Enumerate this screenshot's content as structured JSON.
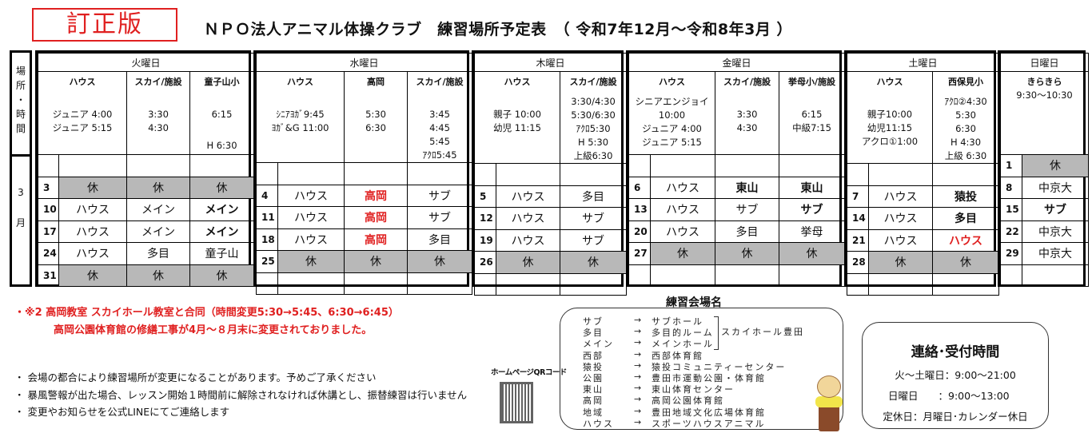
{
  "badge": "訂正版",
  "title": "ＮＰＯ法人アニマル体操クラブ　練習場所予定表　（ 令和7年12月～令和8年3月 ）",
  "side": {
    "top": "場\n所\n・\n時\n間",
    "month": "3\n月"
  },
  "days": [
    {
      "name": "火曜日",
      "cols": [
        {
          "label": "ハウス",
          "times": "ジュニア 4:00\nジュニア 5:15",
          "top": 28
        },
        {
          "label": "スカイ/施設",
          "times": "3:30\n4:30",
          "top": 28
        },
        {
          "label": "童子山小",
          "times": "6:15",
          "note": "H 6:30",
          "top": 28
        }
      ],
      "rows": [
        {
          "d": "",
          "c": [
            {
              "t": ""
            },
            {
              "t": ""
            },
            {
              "t": ""
            }
          ]
        },
        {
          "d": "3",
          "c": [
            {
              "t": "休",
              "s": "gray"
            },
            {
              "t": "休",
              "s": "gray"
            },
            {
              "t": "休",
              "s": "gray"
            }
          ]
        },
        {
          "d": "10",
          "c": [
            {
              "t": "ハウス"
            },
            {
              "t": "メイン"
            },
            {
              "t": "メイン",
              "s": "b"
            }
          ]
        },
        {
          "d": "17",
          "c": [
            {
              "t": "ハウス"
            },
            {
              "t": "メイン"
            },
            {
              "t": "メイン",
              "s": "b"
            }
          ]
        },
        {
          "d": "24",
          "c": [
            {
              "t": "ハウス"
            },
            {
              "t": "多目"
            },
            {
              "t": "童子山"
            }
          ]
        },
        {
          "d": "31",
          "c": [
            {
              "t": "休",
              "s": "gray"
            },
            {
              "t": "休",
              "s": "gray"
            },
            {
              "t": "休",
              "s": "gray"
            }
          ]
        }
      ]
    },
    {
      "name": "水曜日",
      "cols": [
        {
          "label": "ハウス",
          "times": "ｼﾆｱﾖｶﾞ9:45\nﾖｶﾞ&G 11:00",
          "top": 28
        },
        {
          "label": "高岡",
          "times": "5:30\n6:30",
          "top": 28
        },
        {
          "label": "スカイ/施設",
          "times": "3:45\n4:45\n5:45\nｱｸﾛ5:45",
          "top": 28
        }
      ],
      "rows": [
        {
          "d": "",
          "c": [
            {
              "t": ""
            },
            {
              "t": ""
            },
            {
              "t": ""
            }
          ]
        },
        {
          "d": "4",
          "c": [
            {
              "t": "ハウス"
            },
            {
              "t": "高岡",
              "s": "r"
            },
            {
              "t": "サブ"
            }
          ]
        },
        {
          "d": "11",
          "c": [
            {
              "t": "ハウス"
            },
            {
              "t": "高岡",
              "s": "r"
            },
            {
              "t": "サブ"
            }
          ]
        },
        {
          "d": "18",
          "c": [
            {
              "t": "ハウス"
            },
            {
              "t": "高岡",
              "s": "r"
            },
            {
              "t": "多目"
            }
          ]
        },
        {
          "d": "25",
          "c": [
            {
              "t": "休",
              "s": "gray"
            },
            {
              "t": "休",
              "s": "gray"
            },
            {
              "t": "休",
              "s": "gray"
            }
          ]
        },
        {
          "d": "",
          "c": [
            {
              "t": ""
            },
            {
              "t": ""
            },
            {
              "t": ""
            }
          ]
        }
      ]
    },
    {
      "name": "木曜日",
      "cols": [
        {
          "label": "ハウス",
          "times": "親子  10:00\n幼児 11:15",
          "top": 28
        },
        {
          "label": "スカイ/施設",
          "times": "3:30/4:30\n5:30/6:30\nｱｸﾛ5:30\nH  5:30\n上級6:30",
          "top": 12
        }
      ],
      "rows": [
        {
          "d": "",
          "c": [
            {
              "t": ""
            },
            {
              "t": ""
            }
          ]
        },
        {
          "d": "5",
          "c": [
            {
              "t": "ハウス"
            },
            {
              "t": "多目"
            }
          ]
        },
        {
          "d": "12",
          "c": [
            {
              "t": "ハウス"
            },
            {
              "t": "サブ"
            }
          ]
        },
        {
          "d": "19",
          "c": [
            {
              "t": "ハウス"
            },
            {
              "t": "サブ"
            }
          ]
        },
        {
          "d": "26",
          "c": [
            {
              "t": "休",
              "s": "gray"
            },
            {
              "t": "休",
              "s": "gray"
            }
          ]
        },
        {
          "d": "",
          "c": [
            {
              "t": ""
            },
            {
              "t": ""
            }
          ]
        }
      ]
    },
    {
      "name": "金曜日",
      "cols": [
        {
          "label": "ハウス",
          "times": "シニアエンジョイ10:00\nジュニア 4:00\nジュニア 5:15",
          "top": 12
        },
        {
          "label": "スカイ/施設",
          "times": "3:30\n4:30",
          "top": 28
        },
        {
          "label": "挙母小/施設",
          "times": "6:15\n中級7:15",
          "top": 28
        }
      ],
      "rows": [
        {
          "d": "",
          "c": [
            {
              "t": ""
            },
            {
              "t": ""
            },
            {
              "t": ""
            }
          ]
        },
        {
          "d": "6",
          "c": [
            {
              "t": "ハウス"
            },
            {
              "t": "東山",
              "s": "b"
            },
            {
              "t": "東山",
              "s": "b"
            }
          ]
        },
        {
          "d": "13",
          "c": [
            {
              "t": "ハウス"
            },
            {
              "t": "サブ"
            },
            {
              "t": "サブ",
              "s": "b"
            }
          ]
        },
        {
          "d": "20",
          "c": [
            {
              "t": "ハウス"
            },
            {
              "t": "多目"
            },
            {
              "t": "挙母"
            }
          ]
        },
        {
          "d": "27",
          "c": [
            {
              "t": "休",
              "s": "gray"
            },
            {
              "t": "休",
              "s": "gray"
            },
            {
              "t": "休",
              "s": "gray"
            }
          ]
        },
        {
          "d": "",
          "c": [
            {
              "t": ""
            },
            {
              "t": ""
            },
            {
              "t": ""
            }
          ]
        }
      ]
    },
    {
      "name": "土曜日",
      "cols": [
        {
          "label": "ハウス",
          "times": "親子10:00\n幼児11:15\nアクロ①1:00",
          "top": 28
        },
        {
          "label": "西保見小",
          "times": "ｱｸﾛ②4:30\n5:30\n6:30\nH 4:30\n上級 6:30",
          "top": 12
        }
      ],
      "rows": [
        {
          "d": "",
          "c": [
            {
              "t": ""
            },
            {
              "t": ""
            }
          ]
        },
        {
          "d": "7",
          "c": [
            {
              "t": "ハウス"
            },
            {
              "t": "猿投",
              "s": "b"
            }
          ]
        },
        {
          "d": "14",
          "c": [
            {
              "t": "ハウス"
            },
            {
              "t": "多目",
              "s": "b"
            }
          ]
        },
        {
          "d": "21",
          "c": [
            {
              "t": "ハウス"
            },
            {
              "t": "ハウス",
              "s": "r"
            }
          ]
        },
        {
          "d": "28",
          "c": [
            {
              "t": "休",
              "s": "gray"
            },
            {
              "t": "休",
              "s": "gray"
            }
          ]
        },
        {
          "d": "",
          "c": [
            {
              "t": ""
            },
            {
              "t": ""
            }
          ]
        }
      ]
    },
    {
      "name": "日曜日",
      "cols": [
        {
          "label": "きらきら",
          "times": "9:30～10:30",
          "top": 4
        }
      ],
      "rows": [
        {
          "d": "1",
          "c": [
            {
              "t": "休",
              "s": "gray"
            }
          ]
        },
        {
          "d": "8",
          "c": [
            {
              "t": "中京大"
            }
          ]
        },
        {
          "d": "15",
          "c": [
            {
              "t": "サブ",
              "s": "b"
            }
          ]
        },
        {
          "d": "22",
          "c": [
            {
              "t": "中京大"
            }
          ]
        },
        {
          "d": "29",
          "c": [
            {
              "t": "中京大"
            }
          ]
        },
        {
          "d": "",
          "c": [
            {
              "t": ""
            }
          ]
        }
      ]
    }
  ],
  "red_notes": [
    "・※2  高岡教室 スカイホール教室と合同（時間変更5:30→5:45、6:30→6:45）",
    "高岡公園体育館の修繕工事が4月～８月末に変更されておりました。"
  ],
  "notes": [
    "・ 会場の都合により練習場所が変更になることがあります。予めご了承ください",
    "・ 暴風警報が出た場合、レッスン開始１時間前に解除されなければ休講とし、振替練習は行いません",
    "・ 変更やお知らせを公式LINEにてご連絡します"
  ],
  "qr_label": "ホームページQRコード",
  "legend": {
    "title": "練習会場名",
    "arrow": "→",
    "group": "スカイホール豊田",
    "items": [
      [
        "サブ",
        "サブホール"
      ],
      [
        "多目",
        "多目的ルーム"
      ],
      [
        "メイン",
        "メインホール"
      ],
      [
        "西部",
        "西部体育館"
      ],
      [
        "猿投",
        "猿投コミュニティーセンター"
      ],
      [
        "公園",
        "豊田市運動公園・体育館"
      ],
      [
        "東山",
        "東山体育センター"
      ],
      [
        "高岡",
        "高岡公園体育館"
      ],
      [
        "地域",
        "豊田地域文化広場体育館"
      ],
      [
        "ハウス",
        "スポーツハウスアニマル"
      ]
    ]
  },
  "contact": {
    "title": "連絡･受付時間",
    "lines": [
      "火～土曜日：9:00～21:00",
      "日曜日　　：9:00～13:00",
      "定休日：月曜日･カレンダー休日"
    ]
  },
  "colors": {
    "accent_red": "#e02020",
    "holiday_gray": "#b8b8b8"
  }
}
